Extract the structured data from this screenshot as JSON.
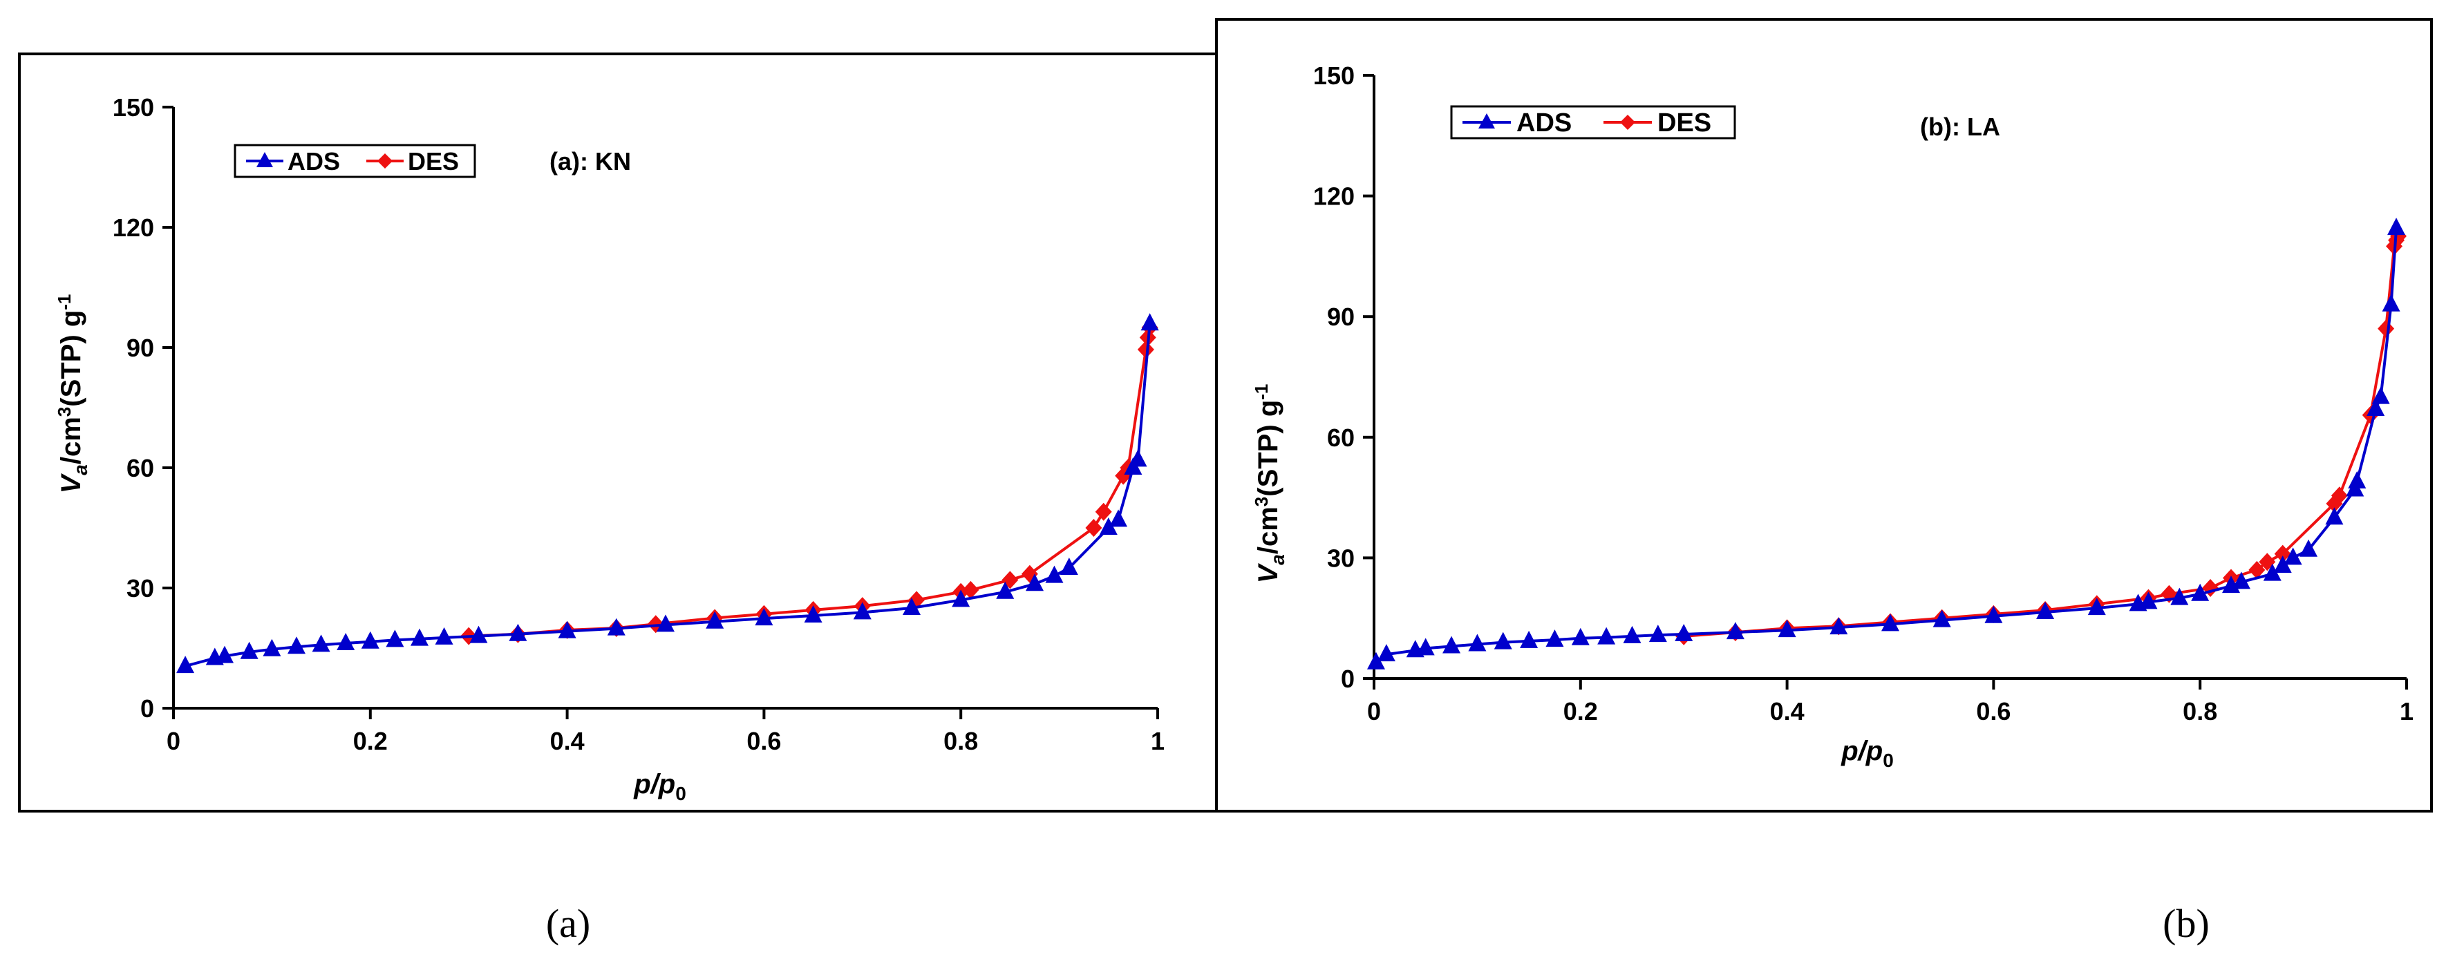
{
  "chart_data": [
    {
      "type": "line",
      "title": "(a): KN",
      "xlabel_main": "p/p",
      "xlabel_sub": "0",
      "ylabel_main": "V",
      "ylabel_sub": "a",
      "ylabel_unit": "/cm",
      "ylabel_sup": "3",
      "ylabel_rest": "(STP) g",
      "ylabel_sup2": "-1",
      "xlim": [
        0,
        1
      ],
      "ylim": [
        0,
        150
      ],
      "xticks": [
        0,
        0.2,
        0.4,
        0.6,
        0.8,
        1
      ],
      "xtick_labels": [
        "0",
        "0.2",
        "0.4",
        "0.6",
        "0.8",
        "1"
      ],
      "yticks": [
        0,
        30,
        60,
        90,
        120,
        150
      ],
      "ytick_labels": [
        "0",
        "30",
        "60",
        "90",
        "120",
        "150"
      ],
      "legend_position": "top-left",
      "caption": "(a)",
      "series": [
        {
          "name": "ADS",
          "color": "#0000cc",
          "marker": "triangle",
          "x": [
            0.012,
            0.042,
            0.052,
            0.077,
            0.1,
            0.125,
            0.15,
            0.175,
            0.2,
            0.225,
            0.25,
            0.275,
            0.31,
            0.35,
            0.4,
            0.45,
            0.5,
            0.55,
            0.6,
            0.65,
            0.7,
            0.75,
            0.8,
            0.845,
            0.875,
            0.895,
            0.91,
            0.95,
            0.96,
            0.975,
            0.98,
            0.992
          ],
          "y": [
            10.5,
            12.5,
            13,
            14,
            14.7,
            15.3,
            15.8,
            16.2,
            16.6,
            17,
            17.3,
            17.6,
            18,
            18.5,
            19.2,
            19.9,
            20.8,
            21.6,
            22.4,
            23.1,
            23.9,
            25,
            27,
            29,
            31,
            33,
            35,
            45,
            47,
            60,
            62,
            96
          ]
        },
        {
          "name": "DES",
          "color": "#ee1111",
          "marker": "diamond",
          "x": [
            0.992,
            0.99,
            0.988,
            0.97,
            0.965,
            0.945,
            0.935,
            0.87,
            0.85,
            0.81,
            0.8,
            0.755,
            0.7,
            0.65,
            0.6,
            0.55,
            0.49,
            0.45,
            0.4,
            0.35,
            0.3
          ],
          "y": [
            95,
            92.5,
            89.5,
            60,
            58,
            49,
            45,
            33.5,
            32,
            29.5,
            29,
            27,
            25.5,
            24.5,
            23.5,
            22.5,
            21,
            20,
            19.5,
            18.5,
            18
          ]
        }
      ]
    },
    {
      "type": "line",
      "title": "(b): LA",
      "xlabel_main": "p/p",
      "xlabel_sub": "0",
      "ylabel_main": "V",
      "ylabel_sub": "a",
      "ylabel_unit": "/cm",
      "ylabel_sup": "3",
      "ylabel_rest": "(STP) g",
      "ylabel_sup2": "-1",
      "xlim": [
        0,
        1
      ],
      "ylim": [
        0,
        150
      ],
      "xticks": [
        0,
        0.2,
        0.4,
        0.6,
        0.8,
        1
      ],
      "xtick_labels": [
        "0",
        "0.2",
        "0.4",
        "0.6",
        "0.8",
        "1"
      ],
      "yticks": [
        0,
        30,
        60,
        90,
        120,
        150
      ],
      "ytick_labels": [
        "0",
        "30",
        "60",
        "90",
        "120",
        "150"
      ],
      "legend_position": "top-left",
      "caption": "(b)",
      "series": [
        {
          "name": "ADS",
          "color": "#0000cc",
          "marker": "triangle",
          "x": [
            0.002,
            0.012,
            0.04,
            0.05,
            0.075,
            0.1,
            0.125,
            0.15,
            0.175,
            0.2,
            0.225,
            0.25,
            0.275,
            0.3,
            0.35,
            0.4,
            0.45,
            0.5,
            0.55,
            0.6,
            0.65,
            0.7,
            0.74,
            0.75,
            0.78,
            0.8,
            0.83,
            0.84,
            0.87,
            0.88,
            0.89,
            0.905,
            0.93,
            0.95,
            0.952,
            0.97,
            0.975,
            0.985,
            0.99
          ],
          "y": [
            4,
            6,
            7,
            7.5,
            8,
            8.5,
            9,
            9.3,
            9.6,
            10,
            10.2,
            10.5,
            10.8,
            11,
            11.5,
            12,
            12.7,
            13.5,
            14.5,
            15.5,
            16.5,
            17.5,
            18.5,
            19,
            20,
            21,
            23,
            24,
            26,
            28,
            30,
            32,
            40,
            47,
            49,
            67,
            70,
            93,
            112
          ]
        },
        {
          "name": "DES",
          "color": "#ee1111",
          "marker": "diamond",
          "x": [
            0.992,
            0.99,
            0.988,
            0.98,
            0.965,
            0.935,
            0.93,
            0.88,
            0.865,
            0.855,
            0.83,
            0.81,
            0.77,
            0.75,
            0.7,
            0.65,
            0.6,
            0.55,
            0.5,
            0.45,
            0.4,
            0.35,
            0.3
          ],
          "y": [
            110,
            109,
            107.5,
            87,
            65.5,
            45.5,
            43.5,
            31,
            29,
            27,
            25,
            22.5,
            21,
            20,
            18.5,
            17,
            16,
            15,
            14,
            13,
            12.5,
            11.5,
            10.5
          ]
        }
      ]
    }
  ]
}
